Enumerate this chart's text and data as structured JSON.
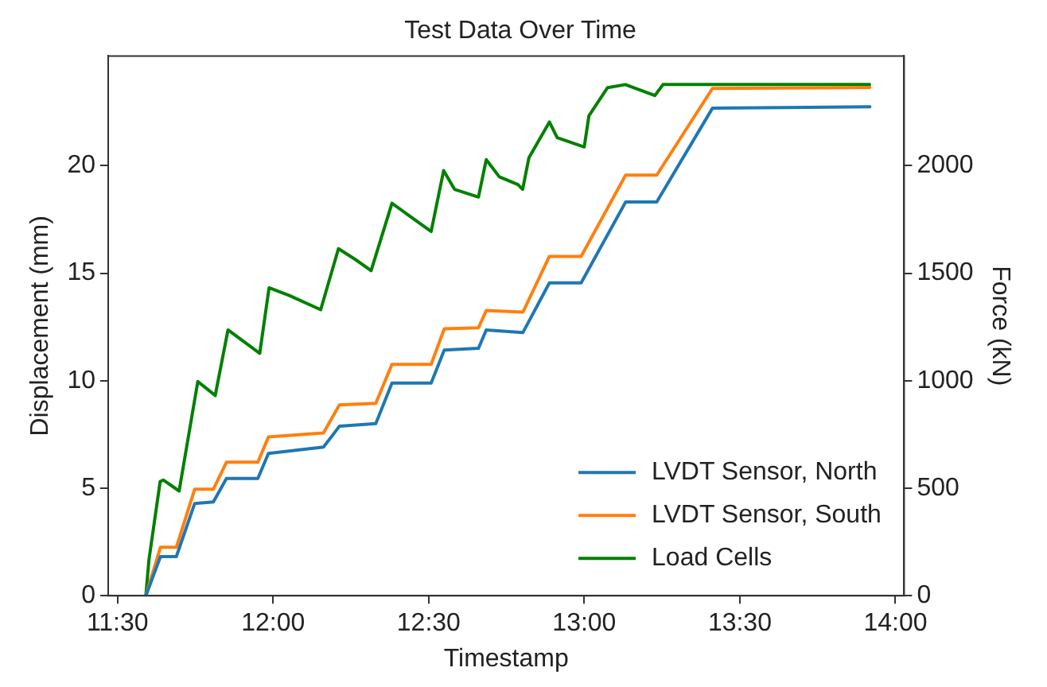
{
  "chart_data": {
    "type": "line",
    "title": "Test Data Over Time",
    "xlabel": "Timestamp",
    "ylabel": "Displacement (mm)",
    "y2label": "Force (kN)",
    "xlim": [
      11.47,
      14.028
    ],
    "xticks": [
      {
        "value": 11.5,
        "label": "11:30"
      },
      {
        "value": 12,
        "label": "12:00"
      },
      {
        "value": 12.5,
        "label": "12:30"
      },
      {
        "value": 13,
        "label": "13:00"
      },
      {
        "value": 13.5,
        "label": "13:30"
      },
      {
        "value": 14,
        "label": "14:00"
      }
    ],
    "ylim": [
      0,
      25.1
    ],
    "yticks": [
      0,
      5,
      10,
      15,
      20
    ],
    "y2lim": [
      0,
      2510
    ],
    "y2ticks": [
      0,
      500,
      1000,
      1500,
      2000
    ],
    "grid": false,
    "legend": "bottom right",
    "marker": "none",
    "line_style": "solid",
    "series": [
      {
        "name": "LVDT Sensor, North",
        "color": "#1f77b4",
        "x": [
          11.591,
          11.638,
          11.689,
          11.748,
          11.808,
          11.85,
          11.951,
          11.985,
          12.162,
          12.213,
          12.33,
          12.382,
          12.508,
          12.55,
          12.66,
          12.685,
          12.803,
          12.888,
          12.99,
          13.133,
          13.233,
          13.412,
          13.918
        ],
        "values": [
          0,
          1.82,
          1.82,
          4.29,
          4.36,
          5.45,
          5.45,
          6.62,
          6.91,
          7.88,
          8.0,
          9.89,
          9.89,
          11.42,
          11.51,
          12.36,
          12.24,
          14.55,
          14.55,
          18.31,
          18.31,
          22.67,
          22.74
        ]
      },
      {
        "name": "LVDT Sensor, South",
        "color": "#ff7f0e",
        "x": [
          11.591,
          11.638,
          11.689,
          11.748,
          11.808,
          11.85,
          11.951,
          11.985,
          12.162,
          12.213,
          12.33,
          12.382,
          12.508,
          12.55,
          12.66,
          12.685,
          12.803,
          12.888,
          12.99,
          13.133,
          13.233,
          13.412,
          13.918
        ],
        "values": [
          0,
          2.25,
          2.25,
          4.95,
          4.95,
          6.21,
          6.21,
          7.38,
          7.57,
          8.87,
          8.95,
          10.76,
          10.76,
          12.41,
          12.46,
          13.26,
          13.19,
          15.78,
          15.78,
          19.56,
          19.56,
          23.59,
          23.64
        ]
      },
      {
        "name": "Load Cells",
        "color": "#008000",
        "axis": "y2",
        "x": [
          11.591,
          11.601,
          11.637,
          11.647,
          11.698,
          11.758,
          11.814,
          11.855,
          11.957,
          11.987,
          12.052,
          12.153,
          12.21,
          12.265,
          12.315,
          12.382,
          12.508,
          12.548,
          12.583,
          12.66,
          12.685,
          12.727,
          12.787,
          12.802,
          12.822,
          12.888,
          12.913,
          13.0,
          13.015,
          13.075,
          13.132,
          13.227,
          13.253,
          13.917
        ],
        "values": [
          0,
          167,
          531,
          538,
          487,
          996,
          931,
          1236,
          1127,
          1432,
          1396,
          1330,
          1614,
          1563,
          1512,
          1825,
          1694,
          1977,
          1890,
          1854,
          2028,
          1948,
          1912,
          1890,
          2036,
          2203,
          2130,
          2087,
          2232,
          2363,
          2377,
          2326,
          2377,
          2377
        ]
      }
    ]
  }
}
